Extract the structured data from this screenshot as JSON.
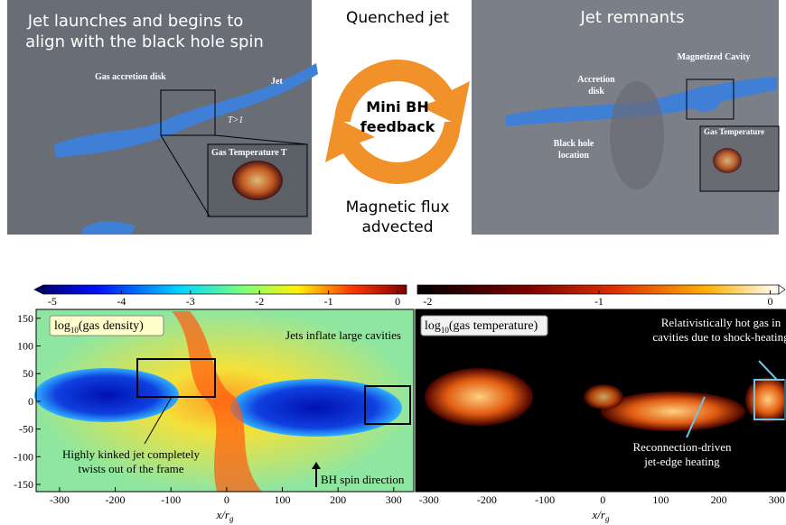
{
  "top_left": {
    "title": [
      "Jet  launches and begins to",
      "align with the black hole spin"
    ],
    "labels": {
      "disk": "Gas accretion disk",
      "jet": "Jet",
      "temp_note": "T>1",
      "inset": "Gas Temperature T"
    }
  },
  "cycle": {
    "top": "Quenched jet",
    "center": [
      "Mini BH",
      "feedback"
    ],
    "bottom": [
      "Magnetic flux",
      "advected"
    ]
  },
  "top_right": {
    "title": "Jet  remnants",
    "labels": {
      "cavity": "Magnetized Cavity",
      "disk": [
        "Accretion",
        "disk"
      ],
      "bh": [
        "Black hole",
        "location"
      ],
      "inset": "Gas Temperature"
    }
  },
  "density": {
    "colorbar": {
      "lim": [
        -5.13,
        0.13
      ],
      "ticks": [
        -5,
        -4,
        -3,
        -2,
        -1,
        0
      ]
    },
    "label": {
      "base": "log",
      "sub": "10",
      "rest": "(gas density)"
    },
    "xlim": [
      -342,
      336
    ],
    "ylim": [
      -163,
      166
    ],
    "xticks": [
      -300,
      -200,
      -100,
      0,
      100,
      200,
      300
    ],
    "yticks": [
      150,
      100,
      50,
      0,
      -50,
      -100,
      -150
    ],
    "xlabel": {
      "main": "x/r",
      "sub": "g"
    },
    "annotations": {
      "cavities": "Jets inflate large cavities",
      "kinked": [
        "Highly kinked jet completely",
        "twists out of the frame"
      ],
      "spin": "BH spin direction"
    }
  },
  "temperature": {
    "colorbar": {
      "lim": [
        -2.06,
        0.05
      ],
      "ticks": [
        -2,
        -1,
        0
      ]
    },
    "label": {
      "base": "log",
      "sub": "10",
      "rest": "(gas temperature)"
    },
    "xlim": [
      -323,
      316
    ],
    "ylim": [
      -163,
      166
    ],
    "xticks": [
      -300,
      -200,
      -100,
      0,
      100,
      200,
      300
    ],
    "xlabel": {
      "main": "x/r",
      "sub": "g"
    },
    "annotations": {
      "hot": [
        "Relativistically hot gas in",
        "cavities due to shock-heating"
      ],
      "reconnection": [
        "Reconnection-driven",
        "jet-edge heating"
      ]
    }
  }
}
